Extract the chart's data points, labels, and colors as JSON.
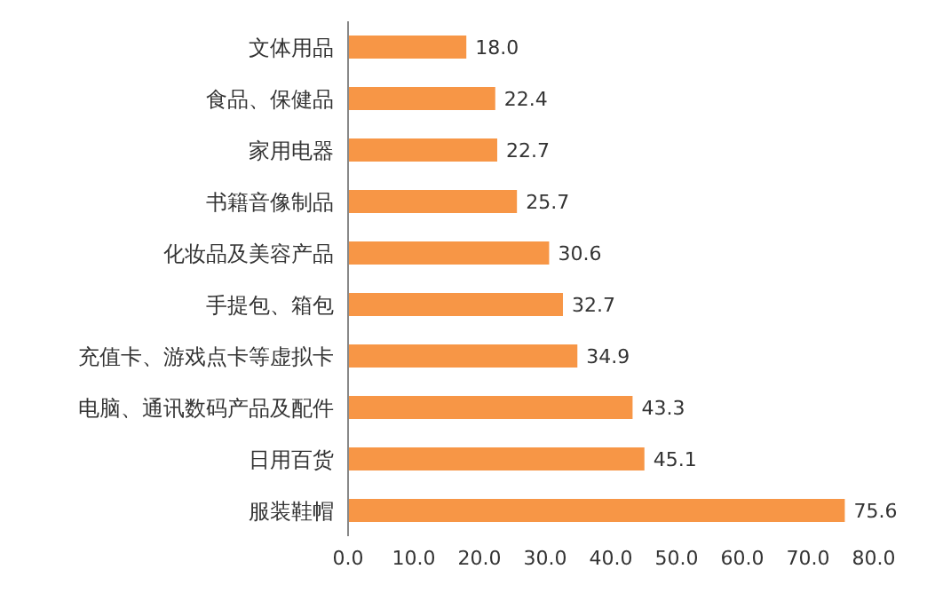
{
  "chart_data": {
    "type": "bar",
    "orientation": "horizontal",
    "categories": [
      "文体用品",
      "食品、保健品",
      "家用电器",
      "书籍音像制品",
      "化妆品及美容产品",
      "手提包、箱包",
      "充值卡、游戏点卡等虚拟卡",
      "电脑、通讯数码产品及配件",
      "日用百货",
      "服装鞋帽"
    ],
    "values": [
      18.0,
      22.4,
      22.7,
      25.7,
      30.6,
      32.7,
      34.9,
      43.3,
      45.1,
      75.6
    ],
    "value_labels": [
      "18.0",
      "22.4",
      "22.7",
      "25.7",
      "30.6",
      "32.7",
      "34.9",
      "43.3",
      "45.1",
      "75.6"
    ],
    "color": "#f79646",
    "xlim": [
      0,
      80
    ],
    "xticks": [
      {
        "value": 0,
        "label": "0.0"
      },
      {
        "value": 10,
        "label": "10.0"
      },
      {
        "value": 20,
        "label": "20.0"
      },
      {
        "value": 30,
        "label": "30.0"
      },
      {
        "value": 40,
        "label": "40.0"
      },
      {
        "value": 50,
        "label": "50.0"
      },
      {
        "value": 60,
        "label": "60.0"
      },
      {
        "value": 70,
        "label": "70.0"
      },
      {
        "value": 80,
        "label": "80.0"
      }
    ],
    "grid": false,
    "legend": false
  }
}
